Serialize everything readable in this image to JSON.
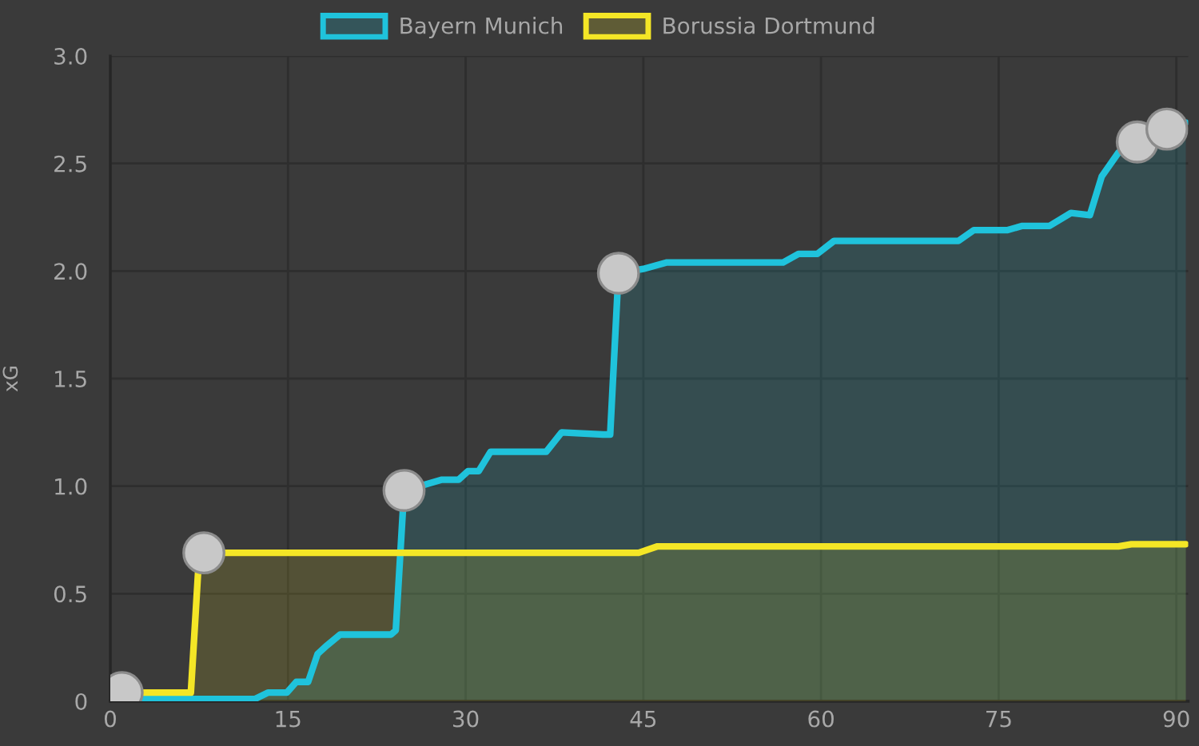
{
  "chart_data": {
    "type": "area",
    "ylabel": "xG",
    "xlim": [
      0,
      91
    ],
    "xticks": [
      0,
      15,
      30,
      45,
      60,
      75,
      90
    ],
    "ylim": [
      0,
      3
    ],
    "yticks": [
      0,
      0.5,
      {
        "value": 1,
        "label": "1.0"
      },
      1.5,
      {
        "value": 2,
        "label": "2.0"
      },
      2.5,
      {
        "value": 3,
        "label": "3.0"
      }
    ],
    "grid": true,
    "legend": "top",
    "marker": "none",
    "line_style": "solid",
    "series": [
      {
        "name": "Bayern Munich",
        "color": "#1fc3dc",
        "x": [
          0,
          12.2,
          13.3,
          14.9,
          15.7,
          16.7,
          17.5,
          18.3,
          19.4,
          23.7,
          24.1,
          24.8,
          26.1,
          28.0,
          29.4,
          30.2,
          31.1,
          32.1,
          36.8,
          38.1,
          41.6,
          42.2,
          42.9,
          45.0,
          47.0,
          56.8,
          58.1,
          59.7,
          61.1,
          71.6,
          72.9,
          75.7,
          77.0,
          79.3,
          81.1,
          82.7,
          83.7,
          85.1,
          86.7,
          89.2,
          90.8
        ],
        "values": [
          0.01,
          0.01,
          0.04,
          0.04,
          0.09,
          0.09,
          0.22,
          0.26,
          0.31,
          0.31,
          0.33,
          0.98,
          1.0,
          1.03,
          1.03,
          1.07,
          1.07,
          1.16,
          1.16,
          1.25,
          1.24,
          1.24,
          1.99,
          2.01,
          2.04,
          2.04,
          2.08,
          2.08,
          2.14,
          2.14,
          2.19,
          2.19,
          2.21,
          2.21,
          2.27,
          2.26,
          2.44,
          2.55,
          2.6,
          2.66,
          2.69
        ]
      },
      {
        "name": "Borussia Dortmund",
        "color": "#f4e626",
        "x": [
          0,
          6.8,
          7.5,
          9.5,
          44.6,
          46.2,
          85.1,
          86.2,
          90.8
        ],
        "values": [
          0.04,
          0.04,
          0.68,
          0.69,
          0.69,
          0.72,
          0.72,
          0.73,
          0.73
        ]
      },
      {
        "type": "scatter",
        "color": "#c8c8c8",
        "marker": "circle",
        "x": [
          1.0,
          7.9,
          24.8,
          42.9,
          86.7,
          89.2
        ],
        "values": [
          0.04,
          0.69,
          0.98,
          1.99,
          2.6,
          2.66
        ]
      }
    ]
  }
}
